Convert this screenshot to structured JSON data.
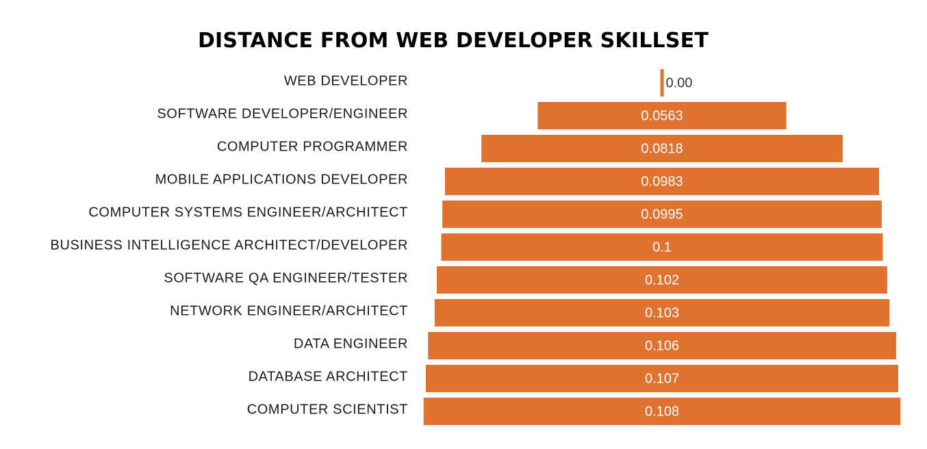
{
  "chart_data": {
    "type": "bar",
    "orientation": "horizontal",
    "layout": "centered funnel",
    "title": "DISTANCE FROM WEB DEVELOPER SKILLSET",
    "bar_color": "#E07230",
    "categories": [
      "WEB DEVELOPER",
      "SOFTWARE DEVELOPER/ENGINEER",
      "COMPUTER PROGRAMMER",
      "MOBILE APPLICATIONS DEVELOPER",
      "COMPUTER SYSTEMS ENGINEER/ARCHITECT",
      "BUSINESS INTELLIGENCE ARCHITECT/DEVELOPER",
      "SOFTWARE QA ENGINEER/TESTER",
      "NETWORK ENGINEER/ARCHITECT",
      "DATA ENGINEER",
      "DATABASE ARCHITECT",
      "COMPUTER SCIENTIST"
    ],
    "values": [
      0.0,
      0.0563,
      0.0818,
      0.0983,
      0.0995,
      0.1,
      0.102,
      0.103,
      0.106,
      0.107,
      0.108
    ],
    "value_labels": [
      "0.00",
      "0.0563",
      "0.0818",
      "0.0983",
      "0.0995",
      "0.1",
      "0.102",
      "0.103",
      "0.106",
      "0.107",
      "0.108"
    ],
    "xlabel": "",
    "ylabel": "",
    "grid": false,
    "legend": "none"
  }
}
